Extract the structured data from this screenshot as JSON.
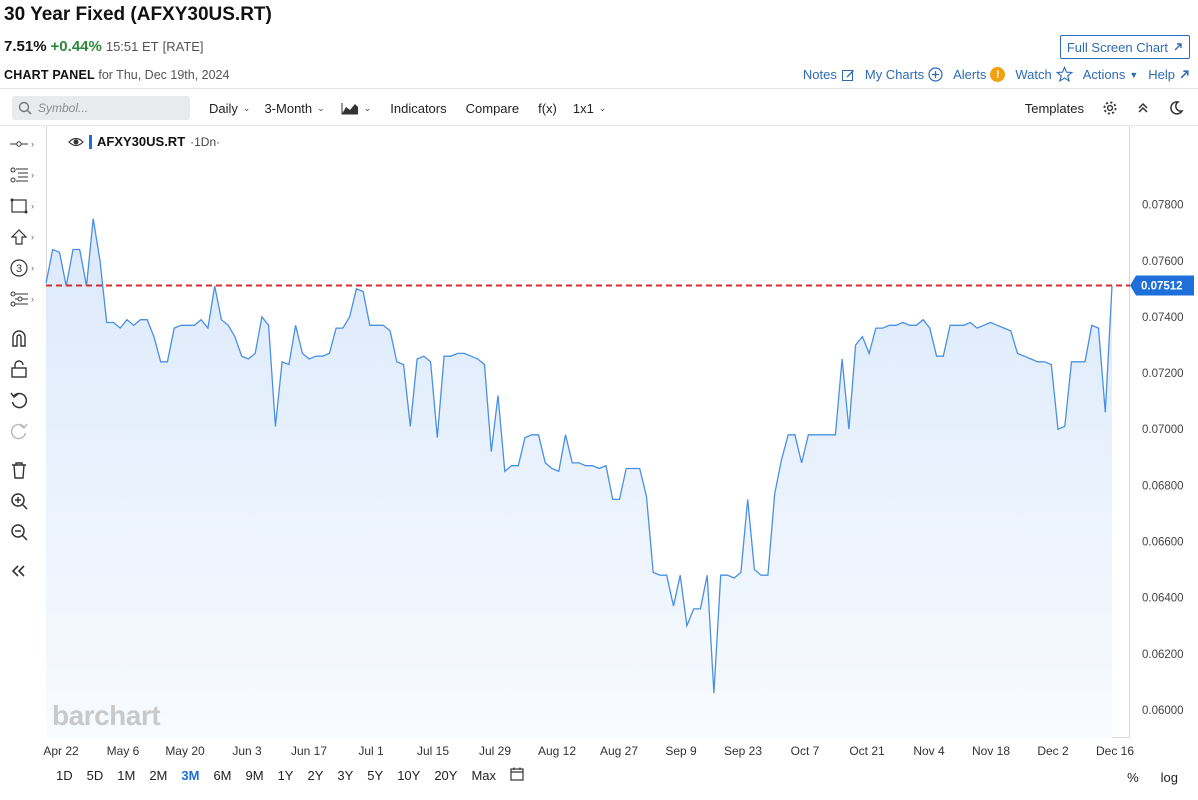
{
  "header": {
    "title": "30 Year Fixed (AFXY30US.RT)",
    "price": "7.51%",
    "change": "+0.44%",
    "time": "15:51 ET",
    "type": "[RATE]",
    "fullscreen_label": "Full Screen Chart"
  },
  "panel": {
    "label": "CHART PANEL",
    "date_text": "for Thu, Dec 19th, 2024"
  },
  "top_links": {
    "notes": "Notes",
    "my_charts": "My Charts",
    "alerts": "Alerts",
    "watch": "Watch",
    "actions": "Actions",
    "help": "Help"
  },
  "toolbar": {
    "symbol_placeholder": "Symbol...",
    "interval": "Daily",
    "period": "3-Month",
    "indicators": "Indicators",
    "compare": "Compare",
    "fx": "f(x)",
    "layout": "1x1",
    "templates": "Templates"
  },
  "legend": {
    "symbol": "AFXY30US.RT",
    "interval": "·1Dn·"
  },
  "watermark": "barchart",
  "ranges": [
    "1D",
    "5D",
    "1M",
    "2M",
    "3M",
    "6M",
    "9M",
    "1Y",
    "2Y",
    "3Y",
    "5Y",
    "10Y",
    "20Y",
    "Max"
  ],
  "active_range": "3M",
  "bottom_right": {
    "percent": "%",
    "log": "log"
  },
  "colors": {
    "line": "#4a90e2",
    "fill": "#dbe9fb",
    "price_line": "#d62d2d",
    "accent": "#1e6fd9",
    "up": "#2a8a3a"
  },
  "chart_data": {
    "type": "area",
    "y_ticks": [
      "0.07800",
      "0.07600",
      "0.07400",
      "0.07200",
      "0.07000",
      "0.06800",
      "0.06600",
      "0.06400",
      "0.06200",
      "0.06000"
    ],
    "ylim": [
      0.059,
      0.0808
    ],
    "x_ticks": [
      "Apr 22",
      "May 6",
      "May 20",
      "Jun 3",
      "Jun 17",
      "Jul 1",
      "Jul 15",
      "Jul 29",
      "Aug 12",
      "Aug 27",
      "Sep 9",
      "Sep 23",
      "Oct 7",
      "Oct 21",
      "Nov 4",
      "Nov 18",
      "Dec 2",
      "Dec 16"
    ],
    "last_value": "0.07512",
    "last_numeric": 0.07512,
    "values": [
      0.0752,
      0.0764,
      0.0763,
      0.0751,
      0.0764,
      0.0764,
      0.0751,
      0.0775,
      0.076,
      0.0738,
      0.0738,
      0.0736,
      0.0739,
      0.0737,
      0.0739,
      0.0739,
      0.0733,
      0.0724,
      0.0724,
      0.0736,
      0.0737,
      0.0737,
      0.0737,
      0.0739,
      0.0736,
      0.0751,
      0.0739,
      0.0737,
      0.0733,
      0.0726,
      0.0725,
      0.0727,
      0.074,
      0.0737,
      0.0701,
      0.0724,
      0.0723,
      0.0737,
      0.0727,
      0.0725,
      0.0726,
      0.0726,
      0.0727,
      0.0736,
      0.0736,
      0.074,
      0.075,
      0.0749,
      0.0737,
      0.0737,
      0.0737,
      0.0735,
      0.0724,
      0.0723,
      0.0701,
      0.0725,
      0.0726,
      0.0724,
      0.0697,
      0.0726,
      0.0726,
      0.0727,
      0.0727,
      0.0726,
      0.0725,
      0.0723,
      0.0692,
      0.0712,
      0.0685,
      0.0687,
      0.0687,
      0.0697,
      0.0698,
      0.0698,
      0.0688,
      0.0686,
      0.0685,
      0.0698,
      0.0688,
      0.0688,
      0.0687,
      0.0687,
      0.0686,
      0.0687,
      0.0675,
      0.0675,
      0.0686,
      0.0686,
      0.0686,
      0.0676,
      0.0649,
      0.0648,
      0.0648,
      0.0637,
      0.0648,
      0.063,
      0.0636,
      0.0636,
      0.0648,
      0.0606,
      0.0648,
      0.0648,
      0.0647,
      0.0649,
      0.0675,
      0.065,
      0.0648,
      0.0648,
      0.0677,
      0.0689,
      0.0698,
      0.0698,
      0.0688,
      0.0698,
      0.0698,
      0.0698,
      0.0698,
      0.0698,
      0.0725,
      0.07,
      0.073,
      0.0733,
      0.0727,
      0.0736,
      0.0736,
      0.0737,
      0.0737,
      0.0738,
      0.0737,
      0.0737,
      0.0739,
      0.0736,
      0.0726,
      0.0726,
      0.0737,
      0.0737,
      0.0737,
      0.0738,
      0.0736,
      0.0737,
      0.0738,
      0.0737,
      0.0736,
      0.0735,
      0.0727,
      0.0726,
      0.0725,
      0.0724,
      0.0724,
      0.0723,
      0.07,
      0.0701,
      0.0724,
      0.0724,
      0.0724,
      0.0737,
      0.0736,
      0.0706,
      0.0751
    ]
  }
}
